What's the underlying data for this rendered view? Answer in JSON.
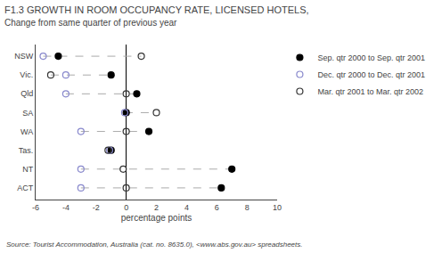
{
  "chart_data": {
    "type": "scatter",
    "title": "F1.3 GROWTH IN ROOM OCCUPANCY RATE, LICENSED HOTELS,",
    "subtitle": "Change from same quarter of previous year",
    "annotations": [
      "Source: Tourist Accommodation, Australia (cat. no. 8635.0), <www.abs.gov.au> spreadsheets."
    ],
    "x_label": "percentage points",
    "categories": [
      "NSW",
      "Vic.",
      "Qld",
      "SA",
      "WA",
      "Tas.",
      "NT",
      "ACT"
    ],
    "xlim": [
      -6,
      10
    ],
    "xticks": [
      -6,
      -4,
      -2,
      0,
      2,
      4,
      6,
      8,
      10
    ],
    "grid": false,
    "legend": "right",
    "line_style": "dashed",
    "series": [
      {
        "name": "Sep. qtr 2000 to Sep. qtr 2001",
        "color": "#000000",
        "marker": "circle",
        "values": [
          -4.5,
          -1.0,
          0.7,
          0.0,
          1.5,
          -1.0,
          7.0,
          6.3
        ]
      },
      {
        "name": "Dec. qtr 2000 to Dec. qtr 2001",
        "color": "#8888cc",
        "marker": "circle-open",
        "values": [
          -5.5,
          -4.0,
          -4.0,
          -0.1,
          -3.0,
          -1.1,
          -3.0,
          -3.0
        ]
      },
      {
        "name": "Mar. qtr 2001 to Mar. qtr 2002",
        "color": "#333333",
        "marker": "circle-open",
        "values": [
          1.0,
          -5.0,
          0.0,
          2.0,
          0.0,
          -1.2,
          -0.2,
          0.0
        ]
      }
    ]
  }
}
